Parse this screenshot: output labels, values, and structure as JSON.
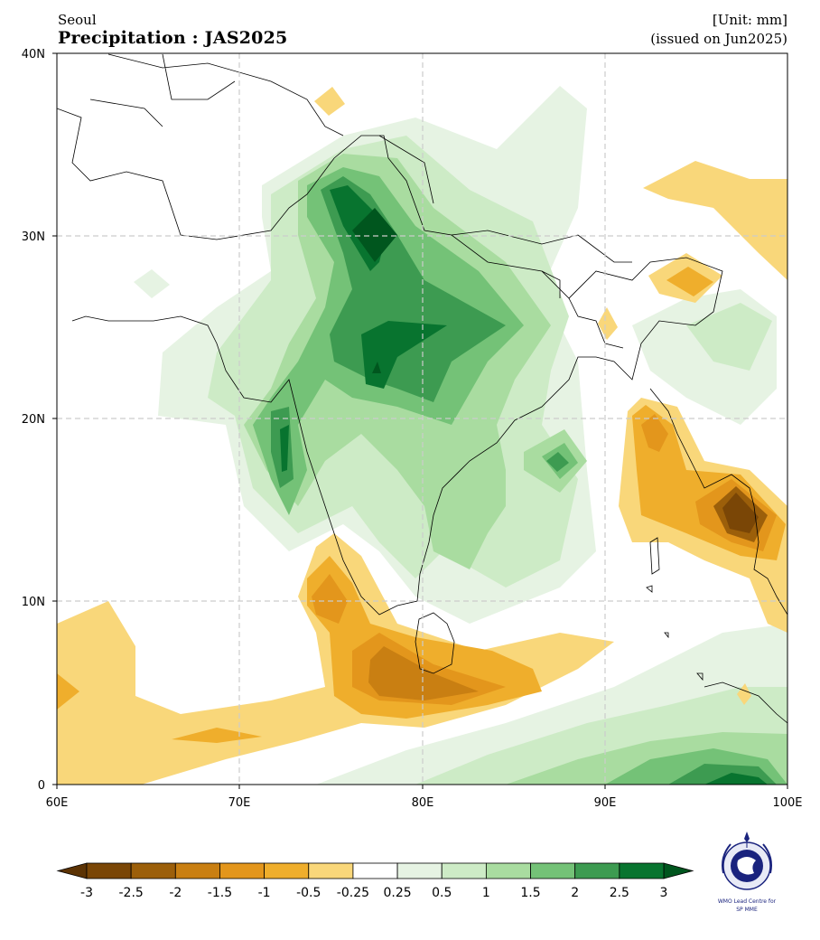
{
  "header": {
    "subtitle": "Seoul",
    "title": "Precipitation : JAS2025",
    "unit": "[Unit: mm]",
    "issued": "(issued on Jun2025)"
  },
  "map": {
    "lon_range": [
      60,
      100
    ],
    "lat_range": [
      0,
      40
    ],
    "x_ticks": [
      "60E",
      "70E",
      "80E",
      "90E",
      "100E"
    ],
    "y_ticks": [
      "0",
      "10N",
      "20N",
      "30N",
      "40N"
    ],
    "grid": true
  },
  "colorbar": {
    "ticks": [
      "-3",
      "-2.5",
      "-2",
      "-1.5",
      "-1",
      "-0.5",
      "-0.25",
      "0.25",
      "0.5",
      "1",
      "1.5",
      "2",
      "2.5",
      "3"
    ],
    "colors": [
      "#7a4606",
      "#9c5f0a",
      "#c97f12",
      "#e3961c",
      "#efae2c",
      "#f9d77a",
      "#ffffff",
      "#e6f3e3",
      "#cdebc6",
      "#a9dca0",
      "#74c277",
      "#3d9b51",
      "#08742f"
    ],
    "under_color": "#5c3304",
    "over_color": "#00561e"
  },
  "logo": {
    "line1": "WMO Lead Centre for",
    "line2": "SP MME",
    "icon": "wmo-globe-icon"
  }
}
